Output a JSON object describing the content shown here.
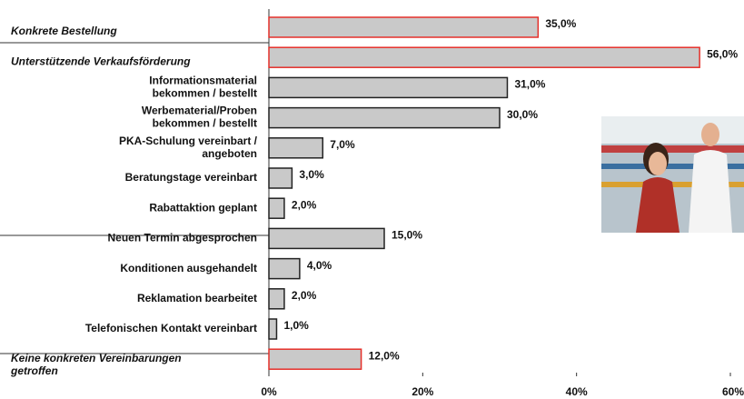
{
  "chart_data": {
    "type": "barh",
    "categories": [
      "Konkrete Bestellung",
      "Unterstützende Verkaufsförderung",
      "Informationsmaterial\nbekommen / bestellt",
      "Werbematerial/Proben\nbekommen / bestellt",
      "PKA-Schulung vereinbart /\nangeboten",
      "Beratungstage vereinbart",
      "Rabattaktion geplant",
      "Neuen Termin abgesprochen",
      "Konditionen ausgehandelt",
      "Reklamation bearbeitet",
      "Telefonischen Kontakt vereinbart",
      "Keine konkreten Vereinbarungen\ngetroffen"
    ],
    "values": [
      35,
      56,
      31,
      30,
      7,
      3,
      2,
      15,
      4,
      2,
      1,
      12
    ],
    "value_labels": [
      "35,0%",
      "56,0%",
      "31,0%",
      "30,0%",
      "7,0%",
      "3,0%",
      "2,0%",
      "15,0%",
      "4,0%",
      "2,0%",
      "1,0%",
      "12,0%"
    ],
    "emphasized": [
      true,
      true,
      false,
      false,
      false,
      false,
      false,
      false,
      false,
      false,
      false,
      true
    ],
    "color": "#c9c9c9",
    "edge_color": "#222222",
    "emphasis_color": "#e5302a",
    "xlim": [
      0,
      60
    ],
    "xticks": [
      {
        "value": 0,
        "label": "0%"
      },
      {
        "value": 20,
        "label": "20%"
      },
      {
        "value": 40,
        "label": "40%"
      },
      {
        "value": 60,
        "label": "60%"
      }
    ]
  }
}
